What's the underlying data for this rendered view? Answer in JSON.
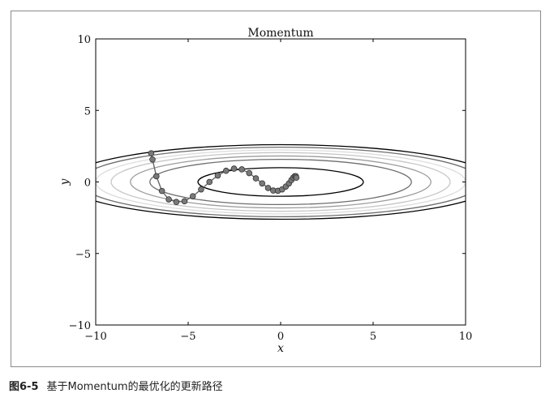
{
  "caption": {
    "figure_number": "图6-5",
    "text": "基于Momentum的最优化的更新路径"
  },
  "chart_data": {
    "type": "contour+line",
    "title": "Momentum",
    "xlabel": "x",
    "ylabel": "y",
    "xlim": [
      -10,
      10
    ],
    "ylim": [
      -10,
      10
    ],
    "x_ticks": [
      -10,
      -5,
      0,
      5,
      10
    ],
    "y_ticks": [
      -10,
      -5,
      0,
      5,
      10
    ],
    "x_tick_labels": [
      "−10",
      "−5",
      "0",
      "5",
      "10"
    ],
    "y_tick_labels": [
      "−10",
      "−5",
      "0",
      "5",
      "10"
    ],
    "grid": false,
    "function": "f(x,y) = x^2/20 + y^2",
    "contour_levels": [
      {
        "level": 1.0,
        "color": "#000000"
      },
      {
        "level": 2.5,
        "color": "#6e6e6e"
      },
      {
        "level": 3.3,
        "color": "#9c9c9c"
      },
      {
        "level": 4.2,
        "color": "#c6c6c6"
      },
      {
        "level": 5.0,
        "color": "#dcdcdc"
      },
      {
        "level": 5.9,
        "color": "#6e6e6e"
      },
      {
        "level": 6.8,
        "color": "#000000"
      }
    ],
    "path": {
      "color": "#666666",
      "marker_color": "#7a7a7a",
      "points": [
        [
          -7.0,
          2.0
        ],
        [
          -6.93,
          1.57
        ],
        [
          -6.72,
          0.4
        ],
        [
          -6.42,
          -0.63
        ],
        [
          -6.05,
          -1.22
        ],
        [
          -5.64,
          -1.4
        ],
        [
          -5.2,
          -1.35
        ],
        [
          -4.75,
          -1.0
        ],
        [
          -4.3,
          -0.52
        ],
        [
          -3.85,
          0.0
        ],
        [
          -3.4,
          0.45
        ],
        [
          -2.95,
          0.78
        ],
        [
          -2.52,
          0.93
        ],
        [
          -2.1,
          0.88
        ],
        [
          -1.7,
          0.62
        ],
        [
          -1.34,
          0.25
        ],
        [
          -1.0,
          -0.1
        ],
        [
          -0.68,
          -0.42
        ],
        [
          -0.4,
          -0.6
        ],
        [
          -0.15,
          -0.62
        ],
        [
          0.08,
          -0.52
        ],
        [
          0.28,
          -0.32
        ],
        [
          0.45,
          -0.1
        ],
        [
          0.58,
          0.13
        ],
        [
          0.68,
          0.3
        ],
        [
          0.76,
          0.4
        ],
        [
          0.82,
          0.4
        ],
        [
          0.85,
          0.3
        ]
      ]
    }
  }
}
